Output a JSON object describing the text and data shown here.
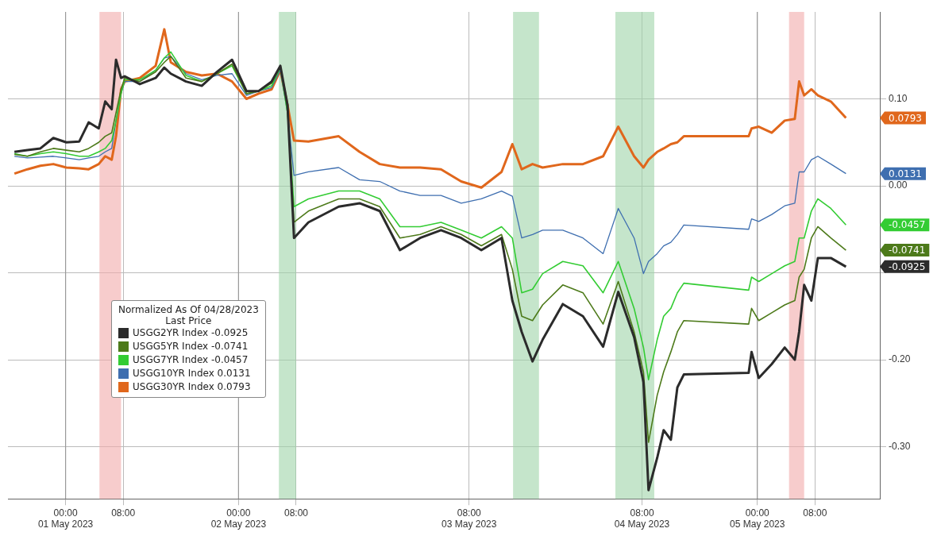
{
  "chart_data": {
    "type": "line",
    "x": [
      "2023-04-30T16:54",
      "2023-04-30T18:42",
      "2023-04-30T20:30",
      "2023-04-30T22:18",
      "2023-05-01T00:06",
      "2023-05-01T01:54",
      "2023-05-01T03:12",
      "2023-05-01T04:36",
      "2023-05-01T05:30",
      "2023-05-01T06:24",
      "2023-05-01T07:00",
      "2023-05-01T07:42",
      "2023-05-01T08:12",
      "2023-05-01T10:18",
      "2023-05-01T12:30",
      "2023-05-01T13:42",
      "2023-05-01T14:36",
      "2023-05-01T16:42",
      "2023-05-01T18:54",
      "2023-05-01T21:00",
      "2023-05-01T23:06",
      "2023-05-02T01:06",
      "2023-05-02T02:48",
      "2023-05-02T04:36",
      "2023-05-02T05:48",
      "2023-05-02T06:48",
      "2023-05-02T07:42",
      "2023-05-02T09:42",
      "2023-05-02T13:54",
      "2023-05-02T16:48",
      "2023-05-02T19:36",
      "2023-05-02T22:24",
      "2023-05-03T01:12",
      "2023-05-03T04:06",
      "2023-05-03T06:54",
      "2023-05-03T09:42",
      "2023-05-03T12:30",
      "2023-05-03T14:00",
      "2023-05-03T15:18",
      "2023-05-03T16:48",
      "2023-05-03T18:12",
      "2023-05-03T21:00",
      "2023-05-03T23:48",
      "2023-05-04T02:36",
      "2023-05-04T04:42",
      "2023-05-04T06:54",
      "2023-05-04T08:12",
      "2023-05-04T08:54",
      "2023-05-04T10:06",
      "2023-05-04T11:00",
      "2023-05-04T12:00",
      "2023-05-04T12:54",
      "2023-05-04T13:48",
      "2023-05-04T22:48",
      "2023-05-04T23:12",
      "2023-05-05T00:12",
      "2023-05-05T02:00",
      "2023-05-05T03:48",
      "2023-05-05T05:12",
      "2023-05-05T05:48",
      "2023-05-05T06:30",
      "2023-05-05T07:30",
      "2023-05-05T08:24",
      "2023-05-05T10:12",
      "2023-05-05T12:18"
    ],
    "series": [
      {
        "name": "USGG2YR Index -0.0925",
        "color": "#2b2b2b",
        "values": [
          0.039,
          0.041,
          0.043,
          0.055,
          0.05,
          0.051,
          0.073,
          0.066,
          0.097,
          0.088,
          0.145,
          0.124,
          0.126,
          0.117,
          0.124,
          0.136,
          0.129,
          0.12,
          0.115,
          0.131,
          0.145,
          0.109,
          0.109,
          0.12,
          0.138,
          0.093,
          -0.06,
          -0.042,
          -0.024,
          -0.02,
          -0.029,
          -0.074,
          -0.06,
          -0.051,
          -0.06,
          -0.074,
          -0.06,
          -0.132,
          -0.168,
          -0.202,
          -0.177,
          -0.136,
          -0.15,
          -0.185,
          -0.122,
          -0.174,
          -0.226,
          -0.35,
          -0.313,
          -0.281,
          -0.292,
          -0.232,
          -0.217,
          -0.215,
          -0.191,
          -0.221,
          -0.205,
          -0.186,
          -0.2,
          -0.168,
          -0.114,
          -0.132,
          -0.083,
          -0.083,
          -0.093
        ]
      },
      {
        "name": "USGG5YR Index -0.0741",
        "color": "#4d7a1a",
        "values": [
          0.036,
          0.034,
          0.039,
          0.043,
          0.041,
          0.039,
          0.043,
          0.05,
          0.057,
          0.061,
          0.084,
          0.111,
          0.124,
          0.12,
          0.131,
          0.142,
          0.149,
          0.124,
          0.12,
          0.129,
          0.14,
          0.106,
          0.109,
          0.118,
          0.138,
          0.088,
          -0.042,
          -0.029,
          -0.015,
          -0.015,
          -0.024,
          -0.06,
          -0.056,
          -0.047,
          -0.056,
          -0.069,
          -0.056,
          -0.096,
          -0.15,
          -0.155,
          -0.137,
          -0.114,
          -0.123,
          -0.159,
          -0.11,
          -0.168,
          -0.214,
          -0.295,
          -0.241,
          -0.214,
          -0.191,
          -0.168,
          -0.155,
          -0.159,
          -0.141,
          -0.155,
          -0.146,
          -0.137,
          -0.132,
          -0.105,
          -0.096,
          -0.06,
          -0.047,
          -0.06,
          -0.074
        ]
      },
      {
        "name": "USGG7YR Index -0.0457",
        "color": "#33cc33",
        "values": [
          0.037,
          0.034,
          0.037,
          0.039,
          0.037,
          0.034,
          0.034,
          0.039,
          0.043,
          0.052,
          0.075,
          0.106,
          0.122,
          0.122,
          0.133,
          0.147,
          0.154,
          0.127,
          0.12,
          0.129,
          0.138,
          0.106,
          0.109,
          0.115,
          0.136,
          0.084,
          -0.024,
          -0.015,
          -0.006,
          -0.006,
          -0.015,
          -0.047,
          -0.047,
          -0.042,
          -0.051,
          -0.06,
          -0.047,
          -0.06,
          -0.123,
          -0.119,
          -0.101,
          -0.087,
          -0.092,
          -0.123,
          -0.087,
          -0.141,
          -0.186,
          -0.223,
          -0.177,
          -0.15,
          -0.141,
          -0.123,
          -0.112,
          -0.12,
          -0.105,
          -0.11,
          -0.101,
          -0.092,
          -0.087,
          -0.06,
          -0.06,
          -0.029,
          -0.015,
          -0.026,
          -0.045
        ]
      },
      {
        "name": "USGG10YR Index 0.0131",
        "color": "#3f6fb0",
        "values": [
          0.034,
          0.032,
          0.033,
          0.034,
          0.032,
          0.03,
          0.032,
          0.034,
          0.039,
          0.043,
          0.075,
          0.106,
          0.12,
          0.12,
          0.133,
          0.147,
          0.149,
          0.129,
          0.122,
          0.127,
          0.129,
          0.104,
          0.109,
          0.113,
          0.133,
          0.084,
          0.012,
          0.016,
          0.021,
          0.007,
          0.005,
          -0.006,
          -0.011,
          -0.011,
          -0.02,
          -0.015,
          -0.006,
          -0.012,
          -0.06,
          -0.056,
          -0.051,
          -0.051,
          -0.06,
          -0.078,
          -0.026,
          -0.06,
          -0.101,
          -0.087,
          -0.078,
          -0.069,
          -0.065,
          -0.056,
          -0.045,
          -0.05,
          -0.038,
          -0.041,
          -0.033,
          -0.023,
          -0.02,
          0.016,
          0.016,
          0.03,
          0.034,
          0.025,
          0.014
        ]
      },
      {
        "name": "USGG30YR Index 0.0793",
        "color": "#e0671c",
        "values": [
          0.014,
          0.019,
          0.023,
          0.025,
          0.021,
          0.02,
          0.019,
          0.025,
          0.034,
          0.03,
          0.057,
          0.111,
          0.12,
          0.124,
          0.138,
          0.18,
          0.142,
          0.131,
          0.127,
          0.129,
          0.12,
          0.1,
          0.106,
          0.111,
          0.133,
          0.093,
          0.052,
          0.051,
          0.057,
          0.039,
          0.025,
          0.021,
          0.021,
          0.019,
          0.005,
          -0.002,
          0.016,
          0.048,
          0.019,
          0.025,
          0.021,
          0.025,
          0.025,
          0.034,
          0.068,
          0.034,
          0.021,
          0.03,
          0.039,
          0.043,
          0.048,
          0.05,
          0.057,
          0.057,
          0.066,
          0.068,
          0.061,
          0.075,
          0.077,
          0.12,
          0.104,
          0.111,
          0.104,
          0.097,
          0.078
        ]
      }
    ],
    "xlim": [
      "2023-04-30T16:00",
      "2023-05-05T17:00"
    ],
    "xticks": [
      {
        "value": "2023-05-01T00:00",
        "label": "00:00\n01 May 2023"
      },
      {
        "value": "2023-05-01T08:00",
        "label": "08:00"
      },
      {
        "value": "2023-05-02T00:00",
        "label": "00:00\n02 May 2023"
      },
      {
        "value": "2023-05-02T08:00",
        "label": "08:00"
      },
      {
        "value": "2023-05-03T08:00",
        "label": "08:00\n03 May 2023"
      },
      {
        "value": "2023-05-04T08:00",
        "label": "08:00\n04 May 2023"
      },
      {
        "value": "2023-05-05T00:00",
        "label": "00:00\n05 May 2023"
      },
      {
        "value": "2023-05-05T08:00",
        "label": "08:00"
      }
    ],
    "ylim": [
      -0.36,
      0.2
    ],
    "yticks": [
      {
        "value": 0.1,
        "label": "0.10"
      },
      {
        "value": 0,
        "label": "0.00"
      },
      {
        "value": -0.1,
        "label": null
      },
      {
        "value": -0.2,
        "label": "-0.20"
      },
      {
        "value": -0.3,
        "label": "-0.30"
      }
    ],
    "bands": [
      {
        "axis": "x",
        "from": "2023-05-01T04:42",
        "to": "2023-05-01T07:42",
        "color": "#f2aaaa"
      },
      {
        "axis": "x",
        "from": "2023-05-02T05:36",
        "to": "2023-05-02T08:00",
        "color": "#9fd4a8"
      },
      {
        "axis": "x",
        "from": "2023-05-03T14:06",
        "to": "2023-05-03T17:42",
        "color": "#9fd4a8"
      },
      {
        "axis": "x",
        "from": "2023-05-04T04:18",
        "to": "2023-05-04T09:42",
        "color": "#9fd4a8"
      },
      {
        "axis": "x",
        "from": "2023-05-05T04:24",
        "to": "2023-05-05T06:30",
        "color": "#f2aaaa"
      }
    ],
    "annotations": [
      "-0.0925",
      "-0.0741",
      "-0.0457",
      "0.0131",
      "0.0793"
    ],
    "legend_title": "Normalized As Of 04/28/2023\nLast Price",
    "legend": "left",
    "grid": true,
    "marker": "none",
    "line_style": "solid"
  }
}
